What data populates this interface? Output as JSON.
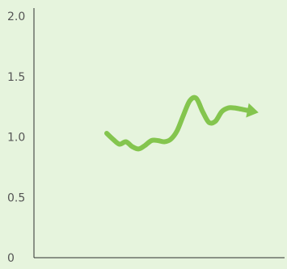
{
  "colors": {
    "background": "#e6f4dd",
    "axis": "#2f2f2f",
    "tick_text": "#555555",
    "line": "#84c54e"
  },
  "chart_data": {
    "type": "line",
    "title": "",
    "xlabel": "",
    "ylabel": "",
    "ylim": [
      0,
      2.0
    ],
    "yticks": [
      {
        "value": 0,
        "label": "0"
      },
      {
        "value": 0.5,
        "label": "0.5"
      },
      {
        "value": 1.0,
        "label": "1.0"
      },
      {
        "value": 1.5,
        "label": "1.5"
      },
      {
        "value": 2.0,
        "label": "2.0"
      }
    ],
    "grid": false,
    "legend": "none",
    "series": [
      {
        "values": [
          1.03,
          0.98,
          0.94,
          0.96,
          0.92,
          0.9,
          0.93,
          0.97,
          0.97,
          0.96,
          0.98,
          1.05,
          1.18,
          1.3,
          1.32,
          1.21,
          1.12,
          1.13,
          1.21,
          1.24,
          1.24,
          1.23,
          1.22
        ],
        "end_marker": "arrow"
      }
    ]
  }
}
